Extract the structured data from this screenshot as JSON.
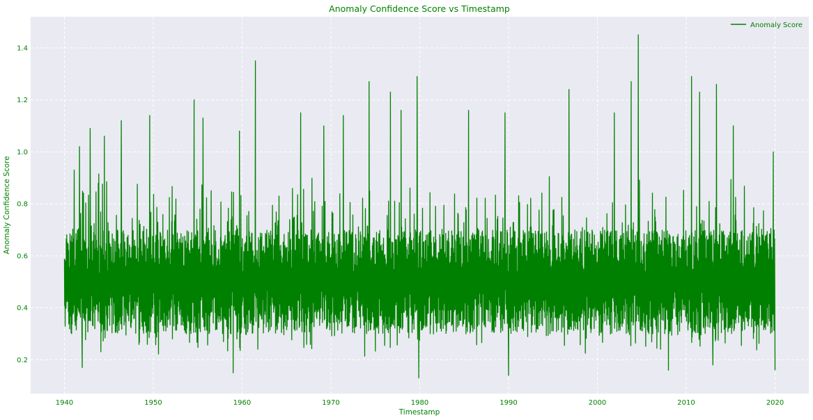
{
  "chart_data": {
    "type": "line",
    "title": "Anomaly Confidence Score vs Timestamp",
    "xlabel": "Timestamp",
    "ylabel": "Anomaly Confidence Score",
    "xlim": [
      1936.2,
      2023.8
    ],
    "ylim": [
      0.07,
      1.52
    ],
    "x_ticks": [
      1940,
      1950,
      1960,
      1970,
      1980,
      1990,
      2000,
      2010,
      2020
    ],
    "x_tick_labels": [
      "1940",
      "1950",
      "1960",
      "1970",
      "1980",
      "1990",
      "2000",
      "2010",
      "2020"
    ],
    "y_ticks": [
      0.2,
      0.4,
      0.6,
      0.8,
      1.0,
      1.2,
      1.4
    ],
    "y_tick_labels": [
      "0.2",
      "0.4",
      "0.6",
      "0.8",
      "1.0",
      "1.2",
      "1.4"
    ],
    "grid": true,
    "legend_position": "top-right",
    "series": [
      {
        "name": "Anomaly Score",
        "color": "#008000",
        "x_start": 1940.0,
        "x_end": 2020.0,
        "baseline_low": 0.3,
        "baseline_high": 0.7,
        "min": 0.13,
        "max": 1.45,
        "peaks": [
          {
            "x": 1941.1,
            "y": 0.93
          },
          {
            "x": 1941.7,
            "y": 1.02
          },
          {
            "x": 1942.9,
            "y": 1.09
          },
          {
            "x": 1944.5,
            "y": 1.06
          },
          {
            "x": 1946.4,
            "y": 1.12
          },
          {
            "x": 1949.6,
            "y": 1.14
          },
          {
            "x": 1954.6,
            "y": 1.2
          },
          {
            "x": 1955.6,
            "y": 1.13
          },
          {
            "x": 1959.7,
            "y": 1.08
          },
          {
            "x": 1961.5,
            "y": 1.35
          },
          {
            "x": 1966.6,
            "y": 1.15
          },
          {
            "x": 1969.2,
            "y": 1.1
          },
          {
            "x": 1971.4,
            "y": 1.14
          },
          {
            "x": 1974.3,
            "y": 1.27
          },
          {
            "x": 1976.7,
            "y": 1.23
          },
          {
            "x": 1977.9,
            "y": 1.16
          },
          {
            "x": 1979.7,
            "y": 1.29
          },
          {
            "x": 1985.5,
            "y": 1.16
          },
          {
            "x": 1989.6,
            "y": 1.15
          },
          {
            "x": 1996.8,
            "y": 1.24
          },
          {
            "x": 2001.9,
            "y": 1.15
          },
          {
            "x": 2003.8,
            "y": 1.27
          },
          {
            "x": 2004.6,
            "y": 1.45
          },
          {
            "x": 2010.6,
            "y": 1.29
          },
          {
            "x": 2011.5,
            "y": 1.23
          },
          {
            "x": 2013.4,
            "y": 1.26
          },
          {
            "x": 2015.3,
            "y": 1.1
          },
          {
            "x": 2019.8,
            "y": 1.0
          }
        ],
        "troughs": [
          {
            "x": 1942.0,
            "y": 0.17
          },
          {
            "x": 1959.0,
            "y": 0.15
          },
          {
            "x": 1979.9,
            "y": 0.13
          },
          {
            "x": 1990.0,
            "y": 0.14
          },
          {
            "x": 2008.0,
            "y": 0.16
          },
          {
            "x": 2013.0,
            "y": 0.18
          },
          {
            "x": 2020.0,
            "y": 0.16
          }
        ]
      }
    ]
  }
}
